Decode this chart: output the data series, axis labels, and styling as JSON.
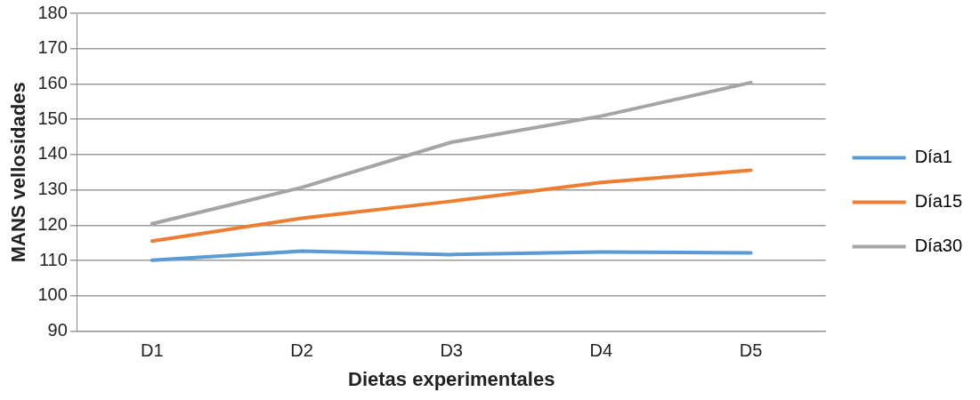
{
  "chart_data": {
    "type": "line",
    "xlabel": "Dietas experimentales",
    "ylabel": "MANS vellosidades",
    "categories": [
      "D1",
      "D2",
      "D3",
      "D4",
      "D5"
    ],
    "series": [
      {
        "name": "Día1",
        "color": "#5b9bd5",
        "values": [
          110.1,
          112.7,
          111.7,
          112.4,
          112.2
        ]
      },
      {
        "name": "Día15",
        "color": "#ed7d31",
        "values": [
          115.5,
          122.0,
          126.8,
          132.1,
          135.6
        ]
      },
      {
        "name": "Día30",
        "color": "#a5a5a5",
        "values": [
          120.4,
          130.7,
          143.5,
          150.9,
          160.4
        ]
      }
    ],
    "ylim": [
      90,
      180
    ],
    "yticks": [
      90,
      100,
      110,
      120,
      130,
      140,
      150,
      160,
      170,
      180
    ],
    "grid": "y",
    "legend": "right",
    "marker": "none",
    "line_style": "solid"
  }
}
